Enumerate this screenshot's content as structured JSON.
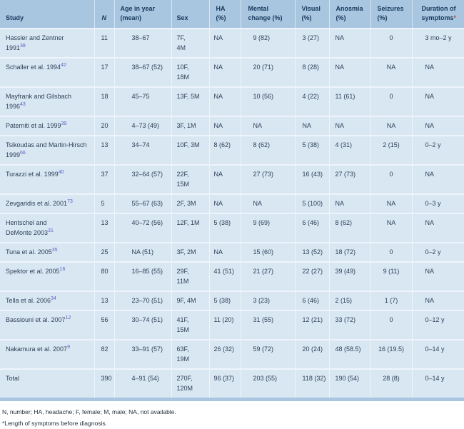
{
  "table": {
    "columns": [
      {
        "id": "study",
        "label": "Study"
      },
      {
        "id": "n",
        "label": "N"
      },
      {
        "id": "age",
        "label": "Age in year\n(mean)"
      },
      {
        "id": "sex",
        "label": "Sex"
      },
      {
        "id": "ha",
        "label": "HA\n(%)"
      },
      {
        "id": "mental",
        "label": "Mental\nchange (%)"
      },
      {
        "id": "visual",
        "label": "Visual\n(%)"
      },
      {
        "id": "anosmia",
        "label": "Anosmia\n(%)"
      },
      {
        "id": "seizures",
        "label": "Seizures\n(%)"
      },
      {
        "id": "duration",
        "label": "Duration of\nsymptoms",
        "asterisk": "*"
      }
    ],
    "rows": [
      {
        "study": "Hassler and Zentner\n1991",
        "ref": "38",
        "n": "11",
        "age": "38–67",
        "sex": "7F,\n4M",
        "ha": "NA",
        "mental": "9 (82)",
        "visual": "3 (27)",
        "anosmia": "NA",
        "seizures": "0",
        "duration": "3 mo–2 y"
      },
      {
        "study": "Schaller et al. 1994",
        "ref": "42",
        "n": "17",
        "age": "38–67 (52)",
        "sex": "10F,\n18M",
        "ha": "NA",
        "mental": "20 (71)",
        "visual": "8 (28)",
        "anosmia": "NA",
        "seizures": "NA",
        "duration": "NA"
      },
      {
        "study": "Mayfrank and Gilsbach\n1996",
        "ref": "43",
        "n": "18",
        "age": "45–75",
        "sex": "13F, 5M",
        "ha": "NA",
        "mental": "10 (56)",
        "visual": "4 (22)",
        "anosmia": "11 (61)",
        "seizures": "0",
        "duration": "NA"
      },
      {
        "study": "Paterniti et al. 1999",
        "ref": "39",
        "n": "20",
        "age": "4–73 (49)",
        "sex": "3F, 1M",
        "ha": "NA",
        "mental": "NA",
        "visual": "NA",
        "anosmia": "NA",
        "seizures": "NA",
        "duration": "NA"
      },
      {
        "study": "Tsikoudas and Martin-Hirsch\n1999",
        "ref": "66",
        "n": "13",
        "age": "34–74",
        "sex": "10F, 3M",
        "ha": "8 (62)",
        "mental": "8 (62)",
        "visual": "5 (38)",
        "anosmia": "4 (31)",
        "seizures": "2 (15)",
        "duration": "0–2 y"
      },
      {
        "study": "Turazzi et al. 1999",
        "ref": "40",
        "n": "37",
        "age": "32–64 (57)",
        "sex": "22F,\n15M",
        "ha": "NA",
        "mental": "27 (73)",
        "visual": "16 (43)",
        "anosmia": "27 (73)",
        "seizures": "0",
        "duration": "NA"
      },
      {
        "study": "Zevgaridis et al. 2001",
        "ref": "73",
        "n": "5",
        "age": "55–67 (63)",
        "sex": "2F, 3M",
        "ha": "NA",
        "mental": "NA",
        "visual": "5 (100)",
        "anosmia": "NA",
        "seizures": "NA",
        "duration": "0–3 y"
      },
      {
        "study": "Hentschel and\nDeMonte 2003",
        "ref": "31",
        "n": "13",
        "age": "40–72 (56)",
        "sex": "12F, 1M",
        "ha": "5 (38)",
        "mental": "9 (69)",
        "visual": "6 (46)",
        "anosmia": "8 (62)",
        "seizures": "NA",
        "duration": "NA"
      },
      {
        "study": "Tuna et al. 2005",
        "ref": "35",
        "n": "25",
        "age": "NA (51)",
        "sex": "3F, 2M",
        "ha": "NA",
        "mental": "15 (60)",
        "visual": "13 (52)",
        "anosmia": "18 (72)",
        "seizures": "0",
        "duration": "0–2 y"
      },
      {
        "study": "Spektor et al. 2005",
        "ref": "16",
        "n": "80",
        "age": "16–85 (55)",
        "sex": "29F,\n11M",
        "ha": "41 (51)",
        "mental": "21 (27)",
        "visual": "22 (27)",
        "anosmia": "39 (49)",
        "seizures": "9 (11)",
        "duration": "NA"
      },
      {
        "study": "Tella et al. 2006",
        "ref": "34",
        "n": "13",
        "age": "23–70 (51)",
        "sex": "9F, 4M",
        "ha": "5 (38)",
        "mental": "3 (23)",
        "visual": "6 (46)",
        "anosmia": "2 (15)",
        "seizures": "1 (7)",
        "duration": "NA"
      },
      {
        "study": "Bassiouni et al. 2007",
        "ref": "12",
        "n": "56",
        "age": "30–74 (51)",
        "sex": "41F,\n15M",
        "ha": "11 (20)",
        "mental": "31 (55)",
        "visual": "12 (21)",
        "anosmia": "33 (72)",
        "seizures": "0",
        "duration": "0–12 y"
      },
      {
        "study": "Nakamura et al. 2007",
        "ref": "9",
        "n": "82",
        "age": "33–91 (57)",
        "sex": "63F,\n19M",
        "ha": "26 (32)",
        "mental": "59 (72)",
        "visual": "20 (24)",
        "anosmia": "48 (58.5)",
        "seizures": "16 (19.5)",
        "duration": "0–14 y"
      }
    ],
    "total": {
      "study": "Total",
      "ref": "",
      "n": "390",
      "age": "4–91 (54)",
      "sex": "270F,\n120M",
      "ha": "96 (37)",
      "mental": "203 (55)",
      "visual": "118 (32)",
      "anosmia": "190 (54)",
      "seizures": "28 (8)",
      "duration": "0–14 y"
    }
  },
  "footnotes": [
    "N, number; HA, headache; F, female; M, male; NA, not available.",
    "*Length of symptoms before diagnosis."
  ],
  "colors": {
    "header_bg": "#a8c6df",
    "row_bg": "#d9e7f3",
    "row_separator": "#eef4fb",
    "header_text": "#17395e",
    "body_text": "#2e4257",
    "reference_link": "#5a5ec8",
    "asterisk": "#c0504d"
  }
}
